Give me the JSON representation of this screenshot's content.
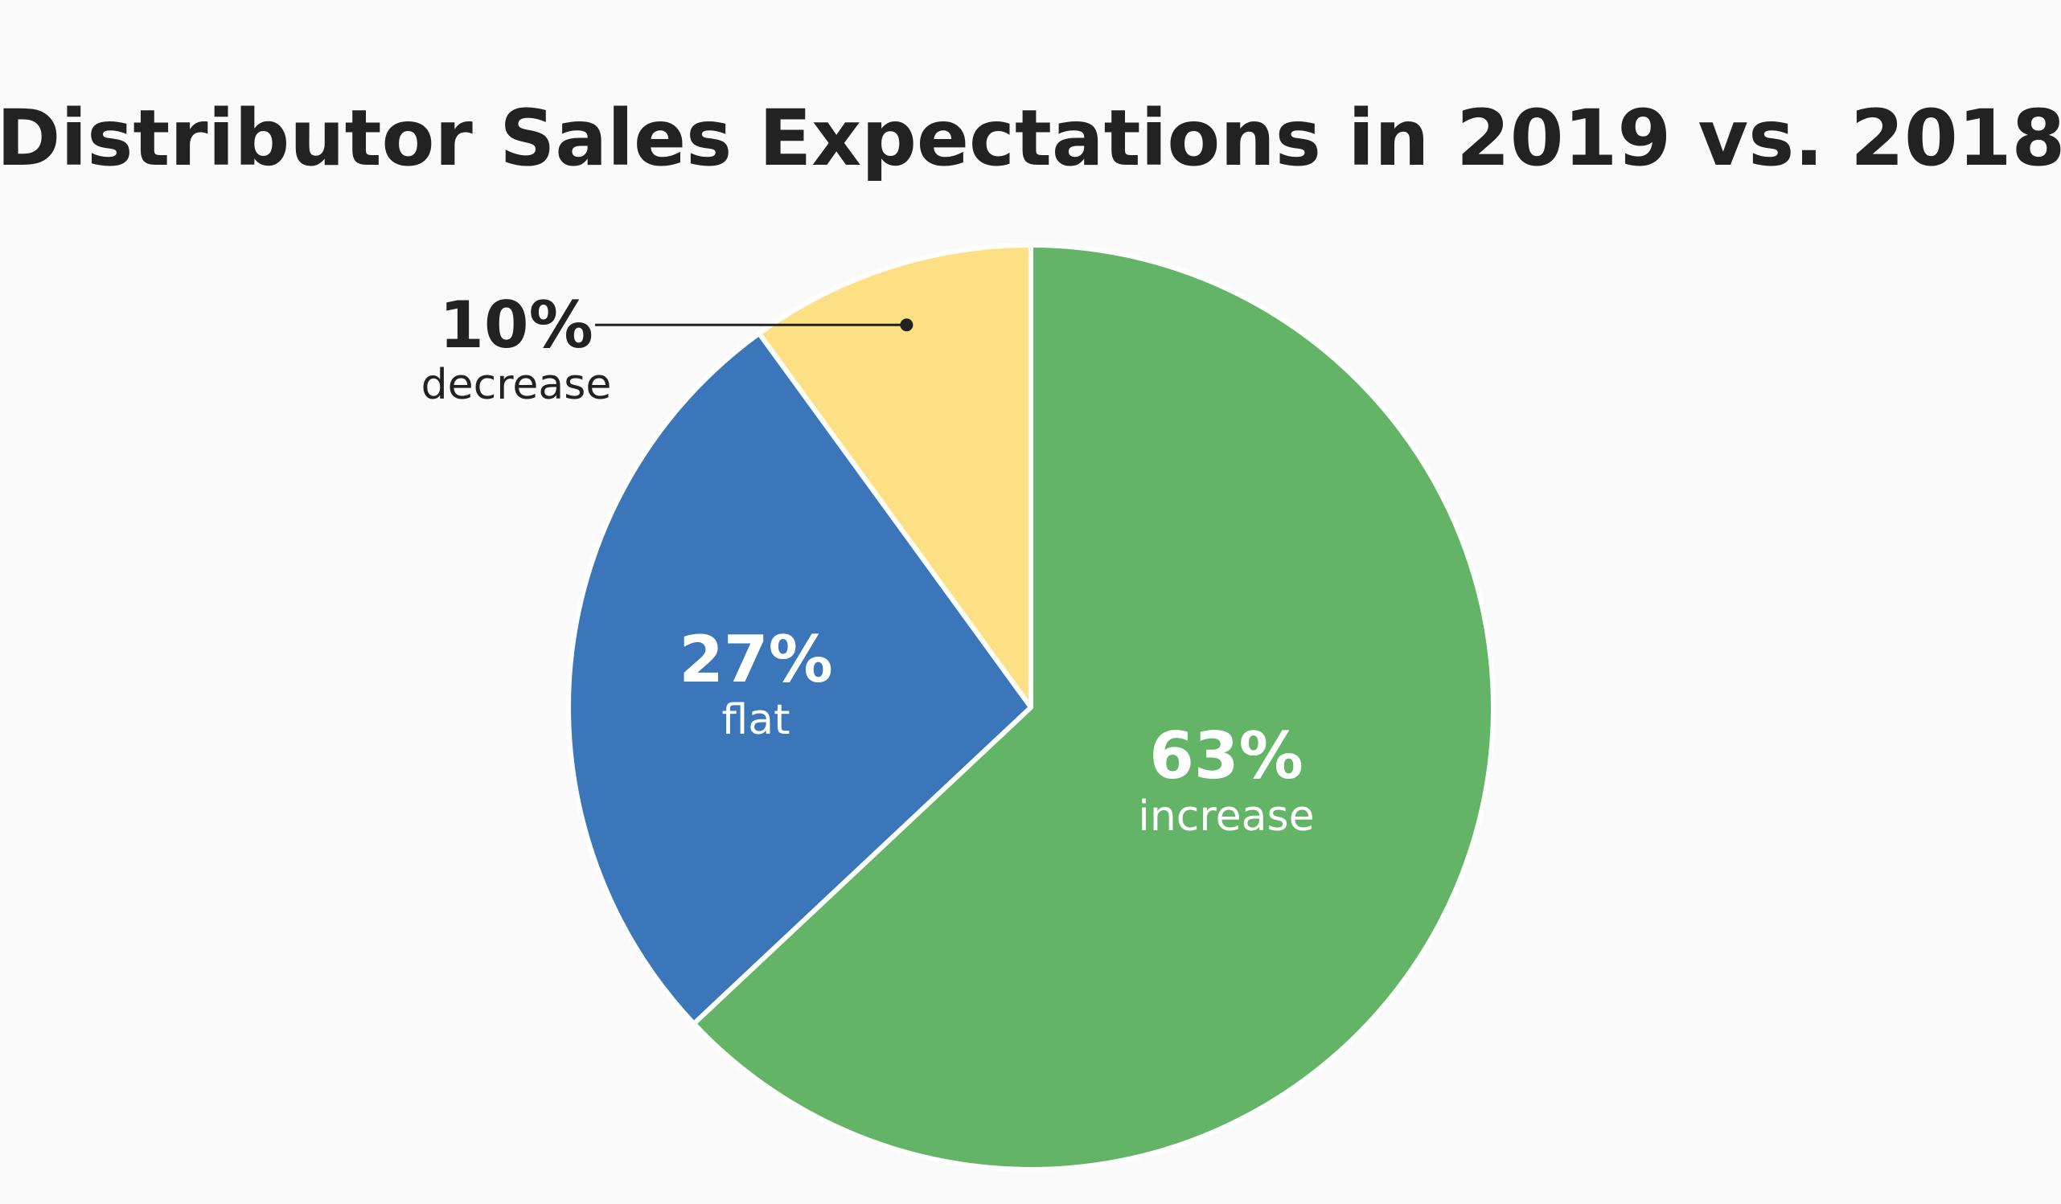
{
  "chart_data": {
    "type": "pie",
    "title": "Distributor Sales Expectations in 2019 vs. 2018",
    "slices": [
      {
        "label": "increase",
        "value": 63,
        "value_text": "63%",
        "color": "#64b467",
        "text_color": "#ffffff"
      },
      {
        "label": "flat",
        "value": 27,
        "value_text": "27%",
        "color": "#3a76b9",
        "text_color": "#ffffff"
      },
      {
        "label": "decrease",
        "value": 10,
        "value_text": "10%",
        "color": "#fde084",
        "text_color": "#222222"
      }
    ],
    "slice_border_color": "#ffffff",
    "leader_line_color": "#222222",
    "start": "top",
    "direction": "clockwise"
  }
}
